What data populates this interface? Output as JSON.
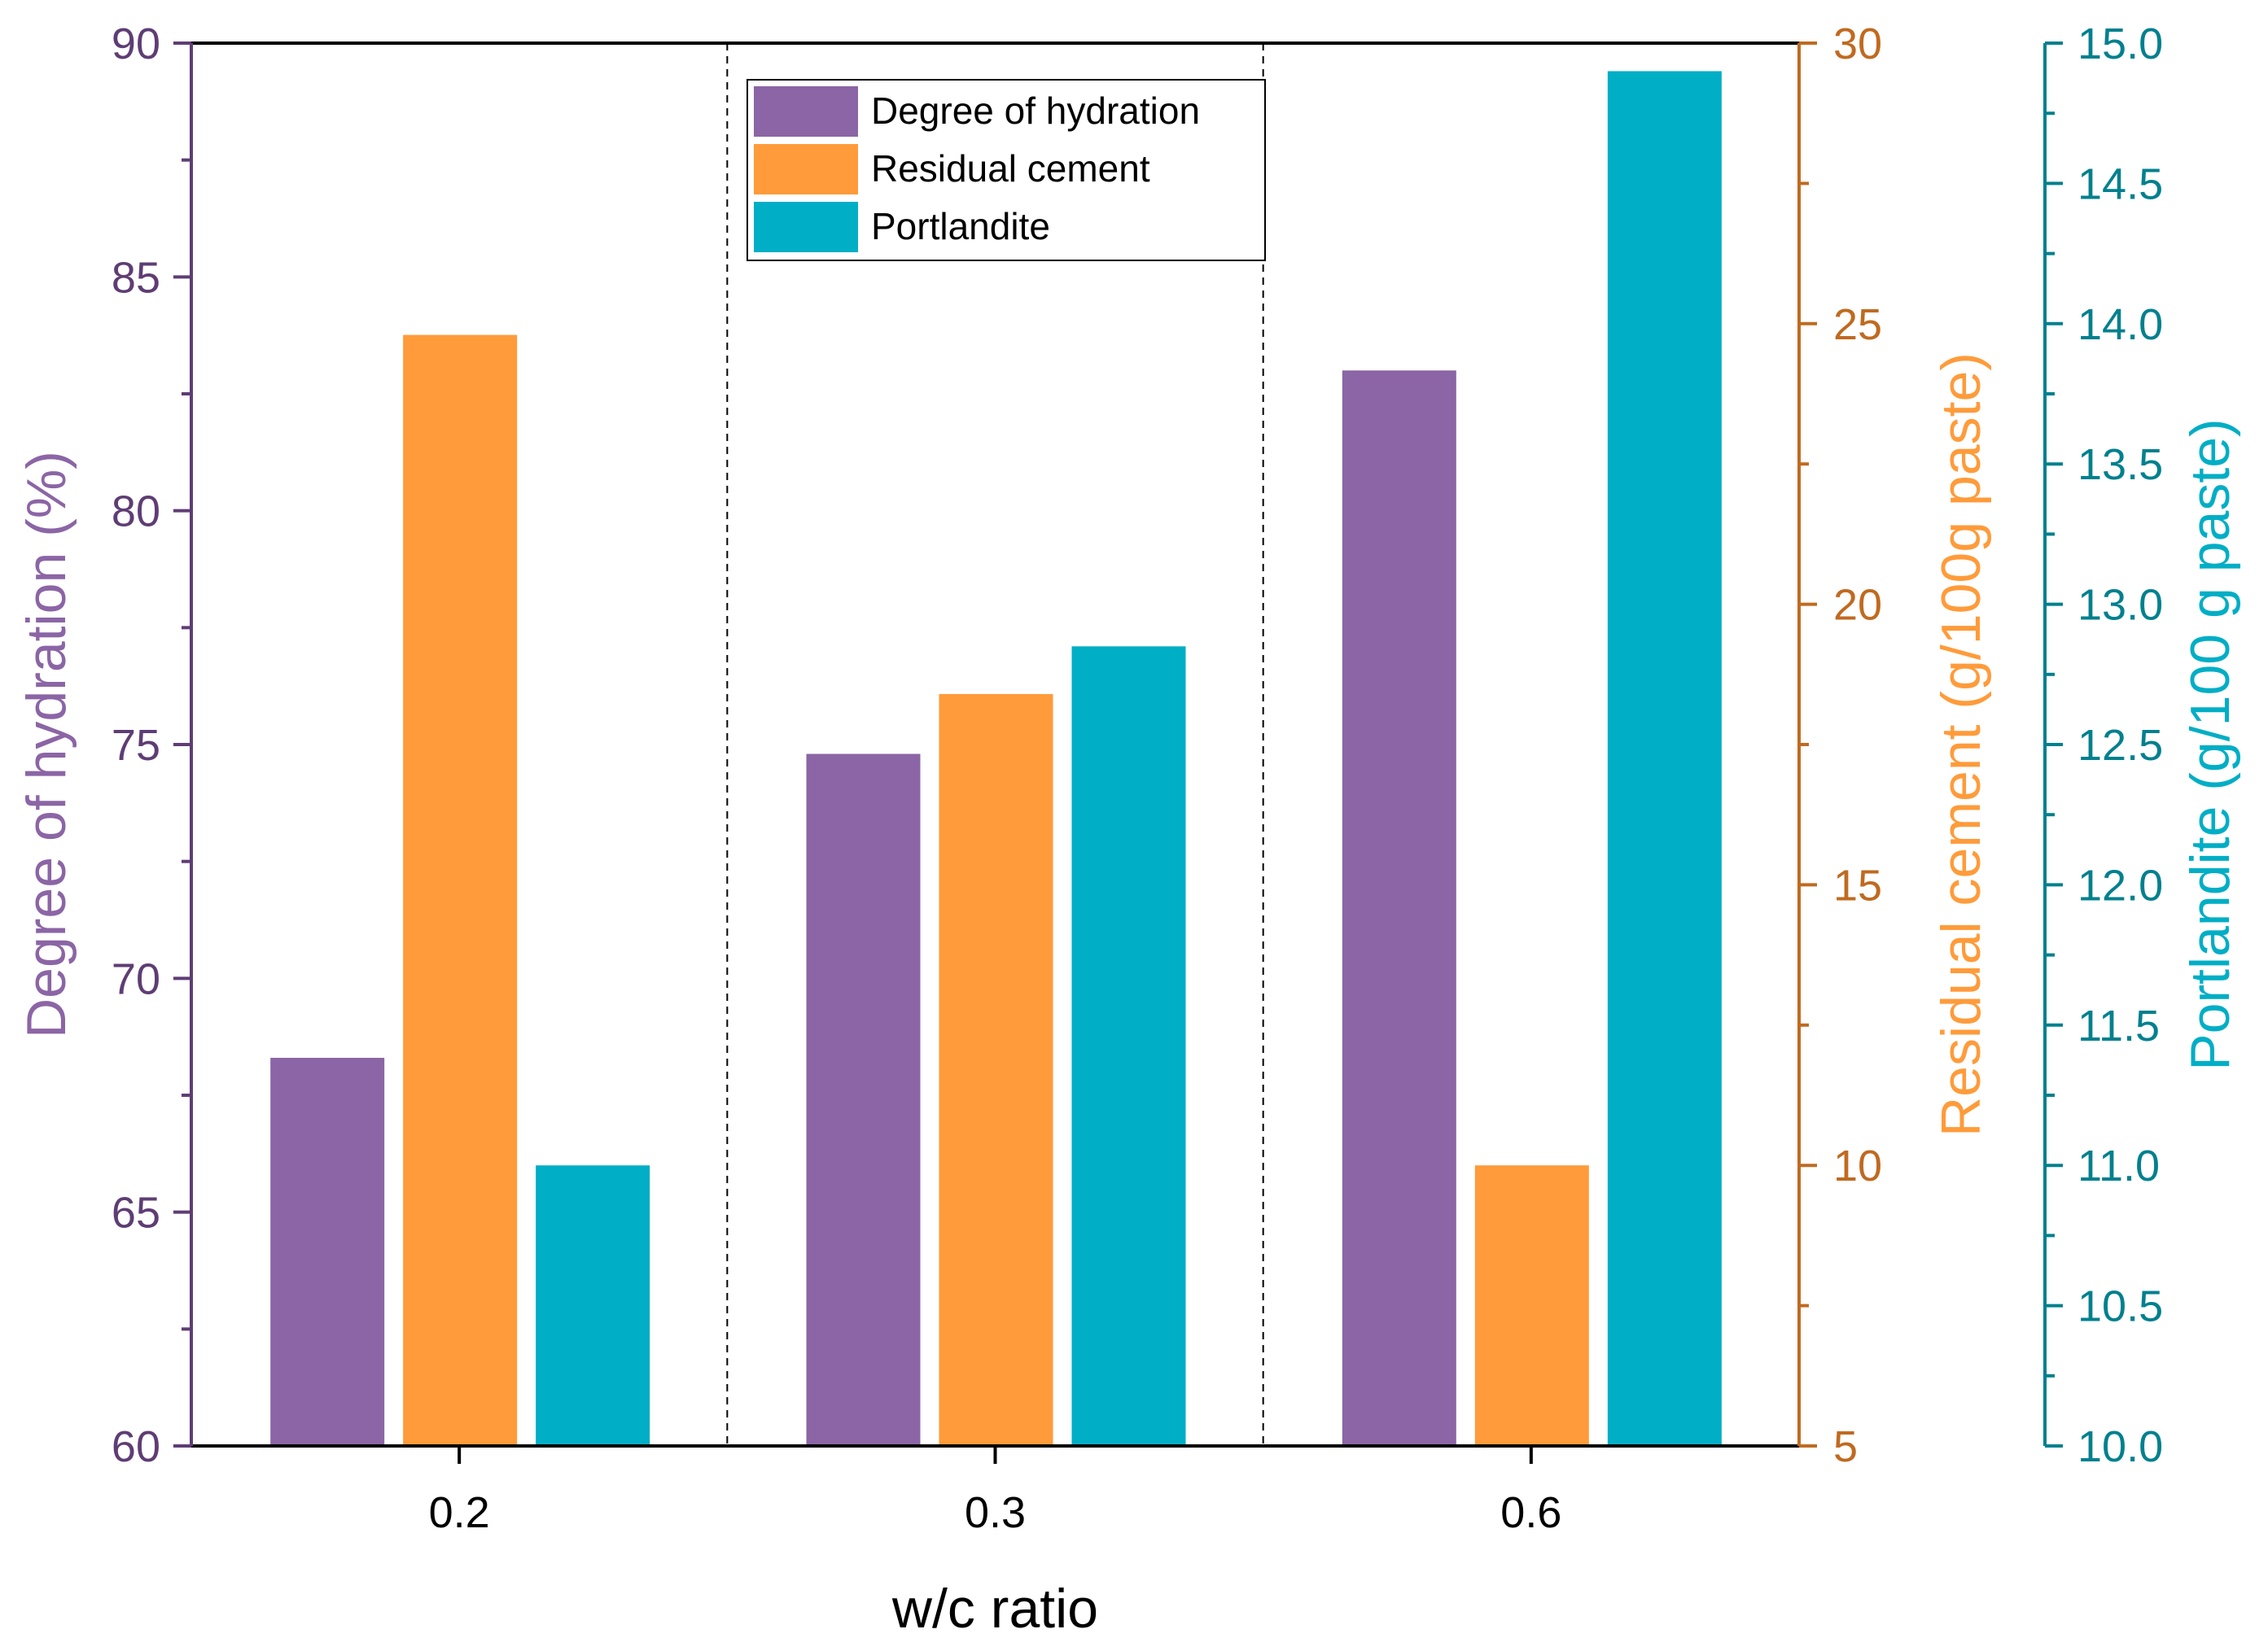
{
  "colors": {
    "purple": "#8B65A5",
    "purple_axis": "#5E3D74",
    "orange": "#FF9B3A",
    "orange_axis": "#C06A20",
    "teal": "#00AEC5",
    "teal_axis": "#00808E",
    "black": "#000000"
  },
  "chart_data": {
    "type": "bar",
    "categories": [
      "0.2",
      "0.3",
      "0.6"
    ],
    "xlabel": "w/c ratio",
    "series": [
      {
        "name": "Degree of hydration",
        "axis": "left",
        "color_key": "purple",
        "values": [
          68.3,
          74.8,
          83.0
        ]
      },
      {
        "name": "Residual cement",
        "axis": "right1",
        "color_key": "orange",
        "values": [
          24.8,
          18.4,
          10.0
        ]
      },
      {
        "name": "Portlandite",
        "axis": "right2",
        "color_key": "teal",
        "values": [
          11.0,
          12.85,
          14.9
        ]
      }
    ],
    "axes": {
      "left": {
        "label": "Degree of hydration (%)",
        "ylim": [
          60,
          90
        ],
        "ticks": [
          "60",
          "65",
          "70",
          "75",
          "80",
          "85",
          "90"
        ],
        "tick_values": [
          60,
          65,
          70,
          75,
          80,
          85,
          90
        ],
        "minor_step": 2.5
      },
      "right1": {
        "label": "Residual cement (g/100g paste)",
        "ylim": [
          5,
          30
        ],
        "ticks": [
          "5",
          "10",
          "15",
          "20",
          "25",
          "30"
        ],
        "tick_values": [
          5,
          10,
          15,
          20,
          25,
          30
        ],
        "minor_step": 2.5
      },
      "right2": {
        "label": "Portlandite (g/100 g paste)",
        "ylim": [
          10,
          15
        ],
        "ticks": [
          "10.0",
          "10.5",
          "11.0",
          "11.5",
          "12.0",
          "12.5",
          "13.0",
          "13.5",
          "14.0",
          "14.5",
          "15.0"
        ],
        "tick_values": [
          10,
          10.5,
          11,
          11.5,
          12,
          12.5,
          13,
          13.5,
          14,
          14.5,
          15
        ],
        "minor_step": 0.25
      }
    },
    "legend": {
      "position": "top-center",
      "entries": [
        "Degree of hydration",
        "Residual cement",
        "Portlandite"
      ]
    },
    "group_separators": "dashed vertical lines between categories",
    "grid": false
  }
}
